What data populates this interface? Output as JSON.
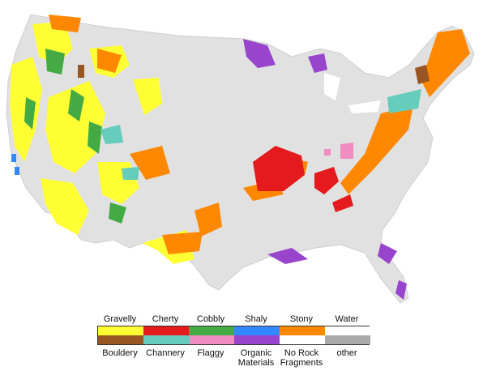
{
  "map": {
    "land_color": "#e1e1e1",
    "categories": [
      {
        "top_label": "Gravelly",
        "bottom_label": "Bouldery",
        "top_color": "#ffff33",
        "bottom_color": "#995522"
      },
      {
        "top_label": "Cherty",
        "bottom_label": "Channery",
        "top_color": "#e41a1c",
        "bottom_color": "#66ccbb"
      },
      {
        "top_label": "Cobbly",
        "bottom_label": "Flaggy",
        "top_color": "#44aa44",
        "bottom_color": "#f08cc0"
      },
      {
        "top_label": "Shaly",
        "bottom_label": "Organic Materials",
        "top_color": "#3388ff",
        "bottom_color": "#9944cc"
      },
      {
        "top_label": "Stony",
        "bottom_label": "No Rock Fragments",
        "top_color": "#ff8800",
        "bottom_color": "#ffffff"
      },
      {
        "top_label": "Water",
        "bottom_label": "other",
        "top_color": "#ffffff",
        "bottom_color": "#aaaaaa"
      }
    ]
  }
}
